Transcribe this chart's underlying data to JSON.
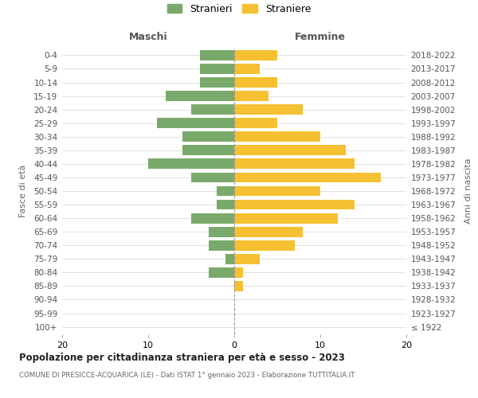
{
  "age_groups": [
    "100+",
    "95-99",
    "90-94",
    "85-89",
    "80-84",
    "75-79",
    "70-74",
    "65-69",
    "60-64",
    "55-59",
    "50-54",
    "45-49",
    "40-44",
    "35-39",
    "30-34",
    "25-29",
    "20-24",
    "15-19",
    "10-14",
    "5-9",
    "0-4"
  ],
  "birth_years": [
    "≤ 1922",
    "1923-1927",
    "1928-1932",
    "1933-1937",
    "1938-1942",
    "1943-1947",
    "1948-1952",
    "1953-1957",
    "1958-1962",
    "1963-1967",
    "1968-1972",
    "1973-1977",
    "1978-1982",
    "1983-1987",
    "1988-1992",
    "1993-1997",
    "1998-2002",
    "2003-2007",
    "2008-2012",
    "2013-2017",
    "2018-2022"
  ],
  "maschi": [
    0,
    0,
    0,
    0,
    3,
    1,
    3,
    3,
    5,
    2,
    2,
    5,
    10,
    6,
    6,
    9,
    5,
    8,
    4,
    4,
    4
  ],
  "femmine": [
    0,
    0,
    0,
    1,
    1,
    3,
    7,
    8,
    12,
    14,
    10,
    17,
    14,
    13,
    10,
    5,
    8,
    4,
    5,
    3,
    5
  ],
  "maschi_color": "#7aaa6b",
  "femmine_color": "#f5c031",
  "title": "Popolazione per cittadinanza straniera per età e sesso - 2023",
  "subtitle": "COMUNE DI PRESICCE-ACQUARICA (LE) - Dati ISTAT 1° gennaio 2023 - Elaborazione TUTTITALIA.IT",
  "xlabel_left": "Maschi",
  "xlabel_right": "Femmine",
  "ylabel_left": "Fasce di età",
  "ylabel_right": "Anni di nascita",
  "xlim": 20,
  "legend_labels": [
    "Stranieri",
    "Straniere"
  ],
  "background_color": "#ffffff",
  "grid_color": "#dddddd"
}
